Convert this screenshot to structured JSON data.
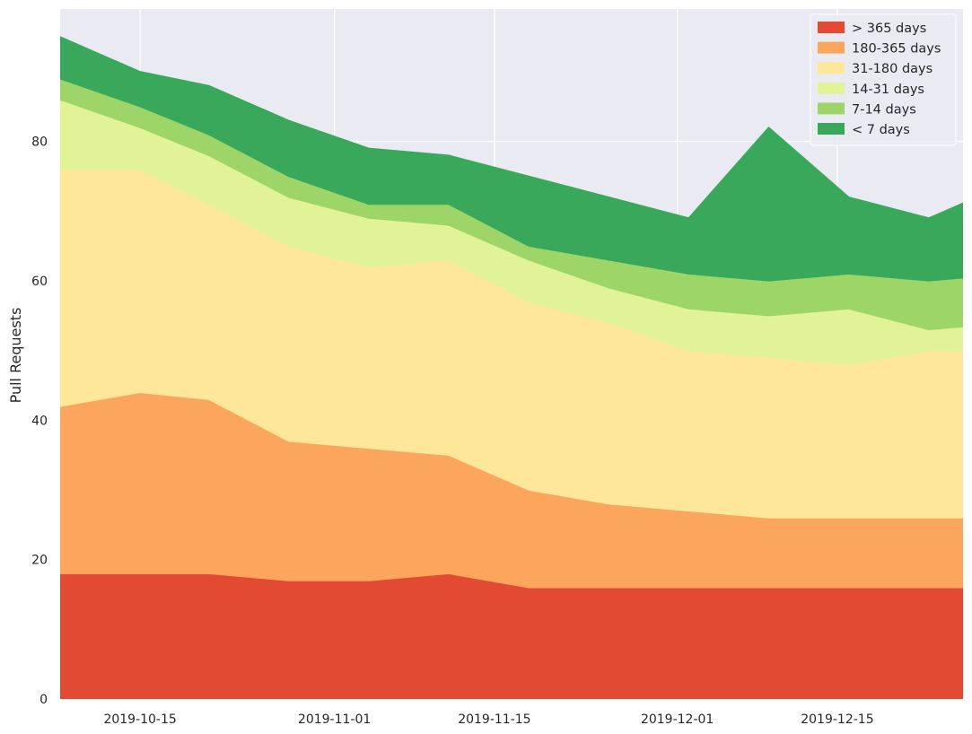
{
  "chart_data": {
    "type": "area",
    "stacked": true,
    "title": "",
    "xlabel": "",
    "ylabel": "Pull Requests",
    "x": [
      "2019-10-08",
      "2019-10-15",
      "2019-10-21",
      "2019-10-28",
      "2019-11-04",
      "2019-11-11",
      "2019-11-18",
      "2019-11-25",
      "2019-12-02",
      "2019-12-09",
      "2019-12-16",
      "2019-12-23",
      "2019-12-30"
    ],
    "xlim": [
      "2019-10-08",
      "2019-12-26"
    ],
    "x_ticks": [
      "2019-10-15",
      "2019-11-01",
      "2019-11-15",
      "2019-12-01",
      "2019-12-15"
    ],
    "ylim": [
      0,
      99
    ],
    "y_ticks": [
      0,
      20,
      40,
      60,
      80
    ],
    "grid": true,
    "legend_position": "top-right",
    "background_color": "#eaeaf2",
    "series": [
      {
        "name": "> 365 days",
        "color": "#e34a33",
        "values": [
          18,
          18,
          18,
          17,
          17,
          18,
          16,
          16,
          16,
          16,
          16,
          16,
          16
        ]
      },
      {
        "name": "180-365 days",
        "color": "#fca55d",
        "values": [
          24,
          26,
          25,
          20,
          19,
          17,
          14,
          12,
          11,
          10,
          10,
          10,
          10
        ]
      },
      {
        "name": "31-180 days",
        "color": "#fee799",
        "values": [
          34,
          32,
          28,
          28,
          26,
          28,
          27,
          26,
          23,
          23,
          22,
          24,
          24
        ]
      },
      {
        "name": "14-31 days",
        "color": "#e2f397",
        "values": [
          10,
          6,
          7,
          7,
          7,
          5,
          6,
          5,
          6,
          6,
          8,
          3,
          4
        ]
      },
      {
        "name": "7-14 days",
        "color": "#9ed569",
        "values": [
          3,
          3,
          3,
          3,
          2,
          3,
          2,
          4,
          5,
          5,
          5,
          7,
          7
        ]
      },
      {
        "name": "< 7 days",
        "color": "#3aa85a",
        "values": [
          6,
          5,
          7,
          8,
          8,
          7,
          10,
          9,
          8,
          22,
          11,
          9,
          13
        ]
      }
    ]
  }
}
